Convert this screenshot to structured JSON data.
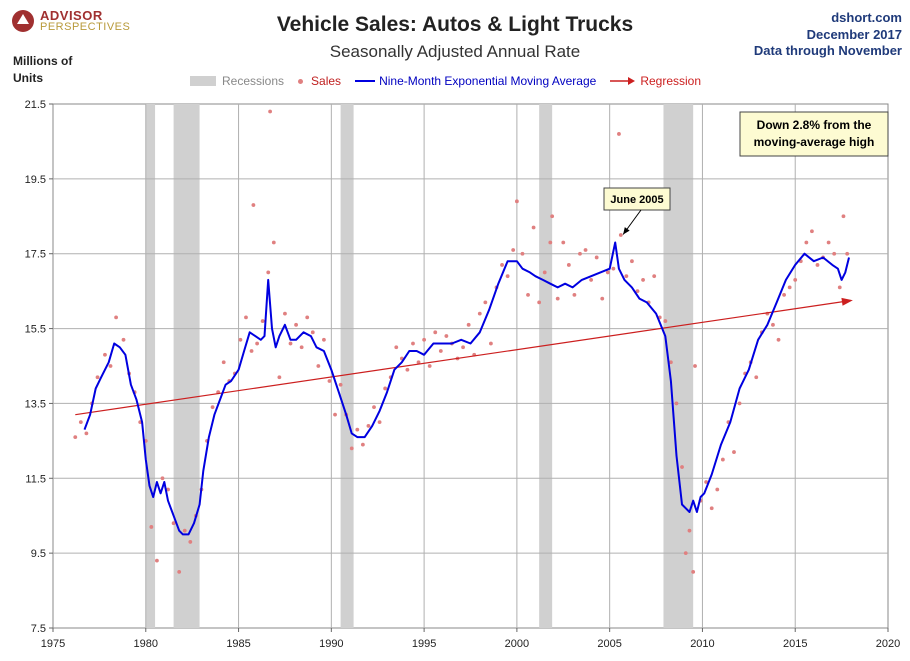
{
  "logo": {
    "line1": "ADVISOR",
    "line2": "PERSPECTIVES"
  },
  "source": {
    "site": "dshort.com",
    "date": "December 2017",
    "through": "Data through November"
  },
  "colors": {
    "sales": "#e08080",
    "ema": "#0000e0",
    "regression": "#cc1f1f",
    "recession": "#d0d0d0",
    "note_bg": "#fdfbd2"
  },
  "chart_data": {
    "type": "scatter",
    "title": "Vehicle Sales: Autos & Light Trucks",
    "subtitle": "Seasonally Adjusted Annual Rate",
    "ylabel": "Millions of Units",
    "xlabel": "",
    "xlim": [
      1975,
      2020
    ],
    "ylim": [
      7.5,
      21.5
    ],
    "xticks": [
      "1975",
      "1980",
      "1985",
      "1990",
      "1995",
      "2000",
      "2005",
      "2010",
      "2015",
      "2020"
    ],
    "yticks": [
      "7.5",
      "9.5",
      "11.5",
      "13.5",
      "15.5",
      "17.5",
      "19.5",
      "21.5"
    ],
    "grid": true,
    "legend_position": "top",
    "legend": [
      "Recessions",
      "Sales",
      "Nine-Month Exponential Moving Average",
      "Regression"
    ],
    "recessions": [
      [
        1980.0,
        1980.5
      ],
      [
        1981.5,
        1982.9
      ],
      [
        1990.5,
        1991.2
      ],
      [
        2001.2,
        2001.9
      ],
      [
        2007.9,
        2009.5
      ]
    ],
    "ema_series": {
      "name": "Nine-Month Exponential Moving Average",
      "x": [
        1976.7,
        1977.0,
        1977.3,
        1977.6,
        1978.0,
        1978.3,
        1978.6,
        1978.9,
        1979.2,
        1979.5,
        1979.8,
        1980.0,
        1980.2,
        1980.4,
        1980.6,
        1980.8,
        1981.0,
        1981.2,
        1981.5,
        1981.8,
        1982.0,
        1982.3,
        1982.6,
        1982.9,
        1983.1,
        1983.4,
        1983.7,
        1984.0,
        1984.3,
        1984.6,
        1985.0,
        1985.3,
        1985.6,
        1985.9,
        1986.2,
        1986.4,
        1986.6,
        1986.8,
        1987.0,
        1987.2,
        1987.5,
        1987.8,
        1988.1,
        1988.5,
        1988.9,
        1989.2,
        1989.6,
        1990.0,
        1990.4,
        1990.8,
        1991.1,
        1991.4,
        1991.8,
        1992.2,
        1992.6,
        1993.0,
        1993.4,
        1993.8,
        1994.2,
        1994.6,
        1995.0,
        1995.5,
        1996.0,
        1996.5,
        1997.0,
        1997.5,
        1998.0,
        1998.5,
        1999.0,
        1999.5,
        2000.0,
        2000.3,
        2000.7,
        2001.0,
        2001.4,
        2001.8,
        2002.2,
        2002.6,
        2003.0,
        2003.5,
        2004.0,
        2004.5,
        2005.0,
        2005.3,
        2005.5,
        2005.8,
        2006.2,
        2006.6,
        2007.0,
        2007.5,
        2008.0,
        2008.3,
        2008.6,
        2008.9,
        2009.1,
        2009.3,
        2009.5,
        2009.7,
        2009.9,
        2010.1,
        2010.5,
        2011.0,
        2011.5,
        2012.0,
        2012.5,
        2013.0,
        2013.5,
        2014.0,
        2014.5,
        2015.0,
        2015.5,
        2016.0,
        2016.5,
        2017.0,
        2017.3,
        2017.5,
        2017.7,
        2017.9
      ],
      "values": [
        12.8,
        13.2,
        13.9,
        14.2,
        14.6,
        15.1,
        15.0,
        14.8,
        14.0,
        13.6,
        13.0,
        12.0,
        11.3,
        11.0,
        11.4,
        11.1,
        11.4,
        10.9,
        10.5,
        10.1,
        10.0,
        10.0,
        10.3,
        10.8,
        11.7,
        12.6,
        13.2,
        13.6,
        14.0,
        14.1,
        14.4,
        14.9,
        15.4,
        15.3,
        15.2,
        15.3,
        16.8,
        15.5,
        15.0,
        15.3,
        15.6,
        15.2,
        15.2,
        15.4,
        15.3,
        15.0,
        14.9,
        14.4,
        13.8,
        13.2,
        12.7,
        12.6,
        12.6,
        12.9,
        13.3,
        13.8,
        14.4,
        14.6,
        14.9,
        14.9,
        14.8,
        15.1,
        15.1,
        15.1,
        15.2,
        15.1,
        15.4,
        16.0,
        16.7,
        17.3,
        17.3,
        17.1,
        17.0,
        16.9,
        16.8,
        16.7,
        16.6,
        16.7,
        16.6,
        16.8,
        16.9,
        17.0,
        17.1,
        17.8,
        17.1,
        16.8,
        16.6,
        16.3,
        16.2,
        15.9,
        15.3,
        14.1,
        12.1,
        10.8,
        10.7,
        10.6,
        10.9,
        10.6,
        11.0,
        11.1,
        11.6,
        12.4,
        13.0,
        13.9,
        14.4,
        15.2,
        15.6,
        16.2,
        16.8,
        17.2,
        17.5,
        17.3,
        17.4,
        17.2,
        17.1,
        16.8,
        17.0,
        17.4
      ]
    },
    "sales_series": {
      "name": "Sales",
      "x": [
        1976.2,
        1976.5,
        1976.8,
        1977.1,
        1977.4,
        1977.8,
        1978.1,
        1978.4,
        1978.8,
        1979.1,
        1979.4,
        1979.7,
        1980.0,
        1980.3,
        1980.6,
        1980.9,
        1981.2,
        1981.5,
        1981.8,
        1982.1,
        1982.4,
        1982.7,
        1983.0,
        1983.3,
        1983.6,
        1983.9,
        1984.2,
        1984.5,
        1984.8,
        1985.1,
        1985.4,
        1985.7,
        1985.8,
        1986.0,
        1986.3,
        1986.6,
        1986.7,
        1986.9,
        1987.2,
        1987.5,
        1987.8,
        1988.1,
        1988.4,
        1988.7,
        1989.0,
        1989.3,
        1989.6,
        1989.9,
        1990.2,
        1990.5,
        1990.8,
        1991.1,
        1991.4,
        1991.7,
        1992.0,
        1992.3,
        1992.6,
        1992.9,
        1993.2,
        1993.5,
        1993.8,
        1994.1,
        1994.4,
        1994.7,
        1995.0,
        1995.3,
        1995.6,
        1995.9,
        1996.2,
        1996.5,
        1996.8,
        1997.1,
        1997.4,
        1997.7,
        1998.0,
        1998.3,
        1998.6,
        1998.9,
        1999.2,
        1999.5,
        1999.8,
        2000.0,
        2000.3,
        2000.6,
        2000.9,
        2001.2,
        2001.5,
        2001.8,
        2001.9,
        2002.2,
        2002.5,
        2002.8,
        2003.1,
        2003.4,
        2003.7,
        2004.0,
        2004.3,
        2004.6,
        2004.9,
        2005.2,
        2005.5,
        2005.6,
        2005.9,
        2006.2,
        2006.5,
        2006.8,
        2007.1,
        2007.4,
        2007.7,
        2008.0,
        2008.3,
        2008.6,
        2008.9,
        2009.1,
        2009.3,
        2009.5,
        2009.6,
        2009.9,
        2010.2,
        2010.5,
        2010.8,
        2011.1,
        2011.4,
        2011.7,
        2012.0,
        2012.3,
        2012.6,
        2012.9,
        2013.2,
        2013.5,
        2013.8,
        2014.1,
        2014.4,
        2014.7,
        2015.0,
        2015.3,
        2015.6,
        2015.9,
        2016.2,
        2016.5,
        2016.8,
        2017.1,
        2017.4,
        2017.6,
        2017.8
      ],
      "values": [
        12.6,
        13.0,
        12.7,
        13.5,
        14.2,
        14.8,
        14.5,
        15.8,
        15.2,
        14.3,
        13.8,
        13.0,
        12.5,
        10.2,
        9.3,
        11.5,
        11.2,
        10.3,
        9.0,
        10.1,
        9.8,
        10.5,
        11.2,
        12.5,
        13.4,
        13.8,
        14.6,
        14.1,
        14.3,
        15.2,
        15.8,
        14.9,
        18.8,
        15.1,
        15.7,
        17.0,
        21.3,
        17.8,
        14.2,
        15.9,
        15.1,
        15.6,
        15.0,
        15.8,
        15.4,
        14.5,
        15.2,
        14.1,
        13.2,
        14.0,
        13.2,
        12.3,
        12.8,
        12.4,
        12.9,
        13.4,
        13.0,
        13.9,
        14.2,
        15.0,
        14.7,
        14.4,
        15.1,
        14.6,
        15.2,
        14.5,
        15.4,
        14.9,
        15.3,
        15.1,
        14.7,
        15.0,
        15.6,
        14.8,
        15.9,
        16.2,
        15.1,
        16.6,
        17.2,
        16.9,
        17.6,
        18.9,
        17.5,
        16.4,
        18.2,
        16.2,
        17.0,
        17.8,
        18.5,
        16.3,
        17.8,
        17.2,
        16.4,
        17.5,
        17.6,
        16.8,
        17.4,
        16.3,
        17.0,
        17.1,
        20.7,
        18.0,
        16.9,
        17.3,
        16.5,
        16.8,
        16.2,
        16.9,
        15.8,
        15.7,
        14.6,
        13.5,
        11.8,
        9.5,
        10.1,
        9.0,
        14.5,
        10.9,
        11.4,
        10.7,
        11.2,
        12.0,
        13.0,
        12.2,
        13.5,
        14.3,
        14.6,
        14.2,
        15.4,
        15.9,
        15.6,
        15.2,
        16.4,
        16.6,
        16.8,
        17.3,
        17.8,
        18.1,
        17.2,
        17.4,
        17.8,
        17.5,
        16.6,
        18.5,
        17.5
      ]
    },
    "regression": {
      "name": "Regression",
      "x": [
        1976.2,
        2018.0
      ],
      "values": [
        13.2,
        16.25
      ]
    },
    "annotations": {
      "june_2005": {
        "text": "June 2005",
        "x": 2005.4,
        "y": 17.8
      },
      "down_note": {
        "line1": "Down 2.8% from the",
        "line2": "moving-average high"
      }
    }
  }
}
